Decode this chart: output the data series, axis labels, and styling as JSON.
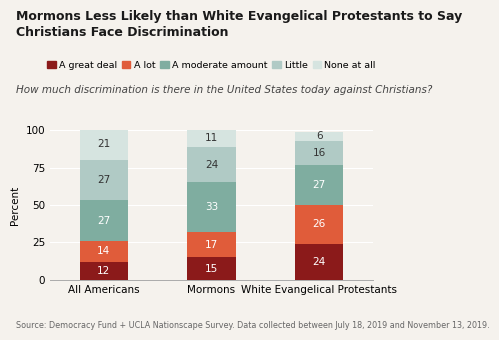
{
  "title": "Mormons Less Likely than White Evangelical Protestants to Say\nChristians Face Discrimination",
  "subtitle": "How much discrimination is there in the United States today against Christians?",
  "source": "Source: Democracy Fund + UCLA Nationscape Survey. Data collected between July 18, 2019 and November 13, 2019.",
  "categories": [
    "All Americans",
    "Mormons",
    "White Evangelical Protestants"
  ],
  "legend_labels": [
    "A great deal",
    "A lot",
    "A moderate amount",
    "Little",
    "None at all"
  ],
  "colors": [
    "#8b1a1a",
    "#e05c3a",
    "#7fada0",
    "#b0cac5",
    "#d6e4e0"
  ],
  "data": {
    "A great deal": [
      12,
      15,
      24
    ],
    "A lot": [
      14,
      17,
      26
    ],
    "A moderate amount": [
      27,
      33,
      27
    ],
    "Little": [
      27,
      24,
      16
    ],
    "None at all": [
      21,
      11,
      6
    ]
  },
  "ylabel": "Percent",
  "ylim": [
    0,
    100
  ],
  "yticks": [
    0,
    25,
    50,
    75,
    100
  ],
  "bar_width": 0.45,
  "background_color": "#f5f2ed",
  "text_color_light": "#ffffff",
  "text_color_dark": "#333333",
  "title_fontsize": 9.0,
  "subtitle_fontsize": 7.5,
  "source_fontsize": 5.8,
  "legend_fontsize": 6.8,
  "tick_fontsize": 7.5,
  "label_fontsize": 7.5,
  "ylabel_fontsize": 7.5
}
